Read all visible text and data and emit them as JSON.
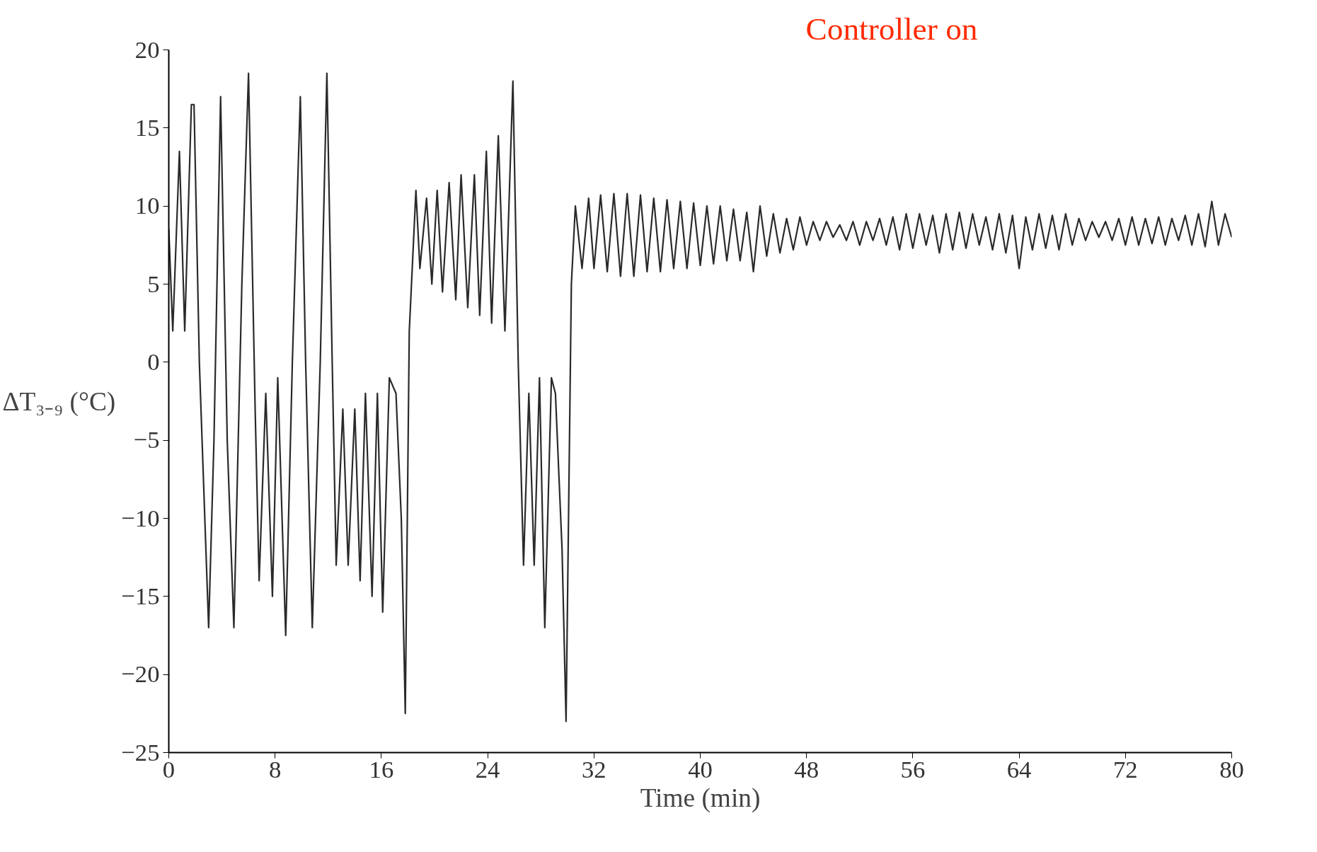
{
  "chart_data": {
    "type": "line",
    "xlabel": "Time (min)",
    "ylabel": "ΔT₃₋₉ (°C)",
    "annotations": [
      "Controller on"
    ],
    "xlim": [
      0,
      80
    ],
    "xticks": [
      0,
      8,
      16,
      24,
      32,
      40,
      48,
      56,
      64,
      72,
      80
    ],
    "ylim": [
      -25,
      20
    ],
    "yticks": [
      -25,
      -20,
      -15,
      -10,
      -5,
      0,
      5,
      10,
      15,
      20
    ],
    "grid": false,
    "marker": "none",
    "line_style": "solid",
    "series": [
      {
        "color": "#2a2a2a",
        "x": [
          0,
          0.3,
          0.8,
          1.2,
          1.7,
          1.9,
          2.3,
          3.0,
          3.4,
          3.9,
          4.4,
          4.9,
          5.5,
          6.0,
          6.5,
          6.8,
          7.3,
          7.8,
          8.2,
          8.8,
          9.3,
          9.9,
          10.3,
          10.8,
          11.4,
          11.9,
          12.3,
          12.6,
          13.1,
          13.5,
          14.0,
          14.4,
          14.8,
          15.3,
          15.7,
          16.1,
          16.6,
          17.1,
          17.5,
          17.8,
          18.1,
          18.6,
          18.9,
          19.4,
          19.8,
          20.2,
          20.6,
          21.1,
          21.6,
          22.0,
          22.5,
          23.0,
          23.4,
          23.9,
          24.3,
          24.8,
          25.3,
          25.9,
          26.3,
          26.7,
          27.1,
          27.5,
          27.9,
          28.3,
          28.8,
          29.1,
          29.6,
          29.9,
          30.3,
          30.6,
          31.1,
          31.6,
          32.0,
          32.5,
          33.0,
          33.5,
          34.0,
          34.5,
          35.0,
          35.5,
          36.0,
          36.5,
          37.0,
          37.5,
          38.0,
          38.5,
          39.0,
          39.5,
          40.0,
          40.5,
          41.0,
          41.5,
          42.0,
          42.5,
          43.0,
          43.5,
          44.0,
          44.5,
          45.0,
          45.5,
          46.0,
          46.5,
          47.0,
          47.5,
          48.0,
          48.5,
          49.0,
          49.5,
          50.0,
          50.5,
          51.0,
          51.5,
          52.0,
          52.5,
          53.0,
          53.5,
          54.0,
          54.5,
          55.0,
          55.5,
          56.0,
          56.5,
          57.0,
          57.5,
          58.0,
          58.5,
          59.0,
          59.5,
          60.0,
          60.5,
          61.0,
          61.5,
          62.0,
          62.5,
          63.0,
          63.5,
          64.0,
          64.5,
          65.0,
          65.5,
          66.0,
          66.5,
          67.0,
          67.5,
          68.0,
          68.5,
          69.0,
          69.5,
          70.0,
          70.5,
          71.0,
          71.5,
          72.0,
          72.5,
          73.0,
          73.5,
          74.0,
          74.5,
          75.0,
          75.5,
          76.0,
          76.5,
          77.0,
          77.5,
          78.0,
          78.5,
          79.0,
          79.5,
          80.0
        ],
        "values": [
          8.5,
          2,
          13.5,
          2,
          16.5,
          16.5,
          0,
          -17,
          -5,
          17,
          -5,
          -17,
          5,
          18.5,
          -3,
          -14,
          -2,
          -15,
          -1,
          -17.5,
          0,
          17,
          0,
          -17,
          0,
          18.5,
          0,
          -13,
          -3,
          -13,
          -3,
          -14,
          -2,
          -15,
          -2,
          -16,
          -1,
          -2,
          -10,
          -22.5,
          2,
          11,
          6,
          10.5,
          5,
          11,
          4.5,
          11.5,
          4,
          12,
          3.5,
          12,
          3,
          13.5,
          2.5,
          14.5,
          2,
          18,
          0,
          -13,
          -2,
          -13,
          -1,
          -17,
          -1,
          -2,
          -12,
          -23,
          5,
          10,
          6,
          10.5,
          6,
          10.7,
          5.8,
          10.8,
          5.5,
          10.8,
          5.5,
          10.7,
          5.8,
          10.5,
          5.8,
          10.4,
          6,
          10.3,
          6,
          10.2,
          6.2,
          10,
          6.3,
          10,
          6.5,
          9.8,
          6.5,
          9.6,
          5.8,
          10,
          6.8,
          9.5,
          7,
          9.2,
          7.2,
          9.3,
          7.5,
          9,
          7.8,
          9,
          8,
          8.8,
          7.8,
          9,
          7.5,
          9,
          7.8,
          9.2,
          7.5,
          9.3,
          7.2,
          9.5,
          7.3,
          9.5,
          7.5,
          9.4,
          7,
          9.5,
          7.2,
          9.6,
          7.3,
          9.5,
          7.5,
          9.3,
          7.2,
          9.5,
          7,
          9.4,
          6,
          9.3,
          7.2,
          9.5,
          7.3,
          9.4,
          7.2,
          9.5,
          7.5,
          9.2,
          7.8,
          9,
          8,
          9,
          7.8,
          9.2,
          7.5,
          9.3,
          7.5,
          9.2,
          7.6,
          9.3,
          7.5,
          9.2,
          7.8,
          9.4,
          7.5,
          9.5,
          7.4,
          10.3,
          7.5,
          9.5,
          8
        ]
      }
    ]
  }
}
